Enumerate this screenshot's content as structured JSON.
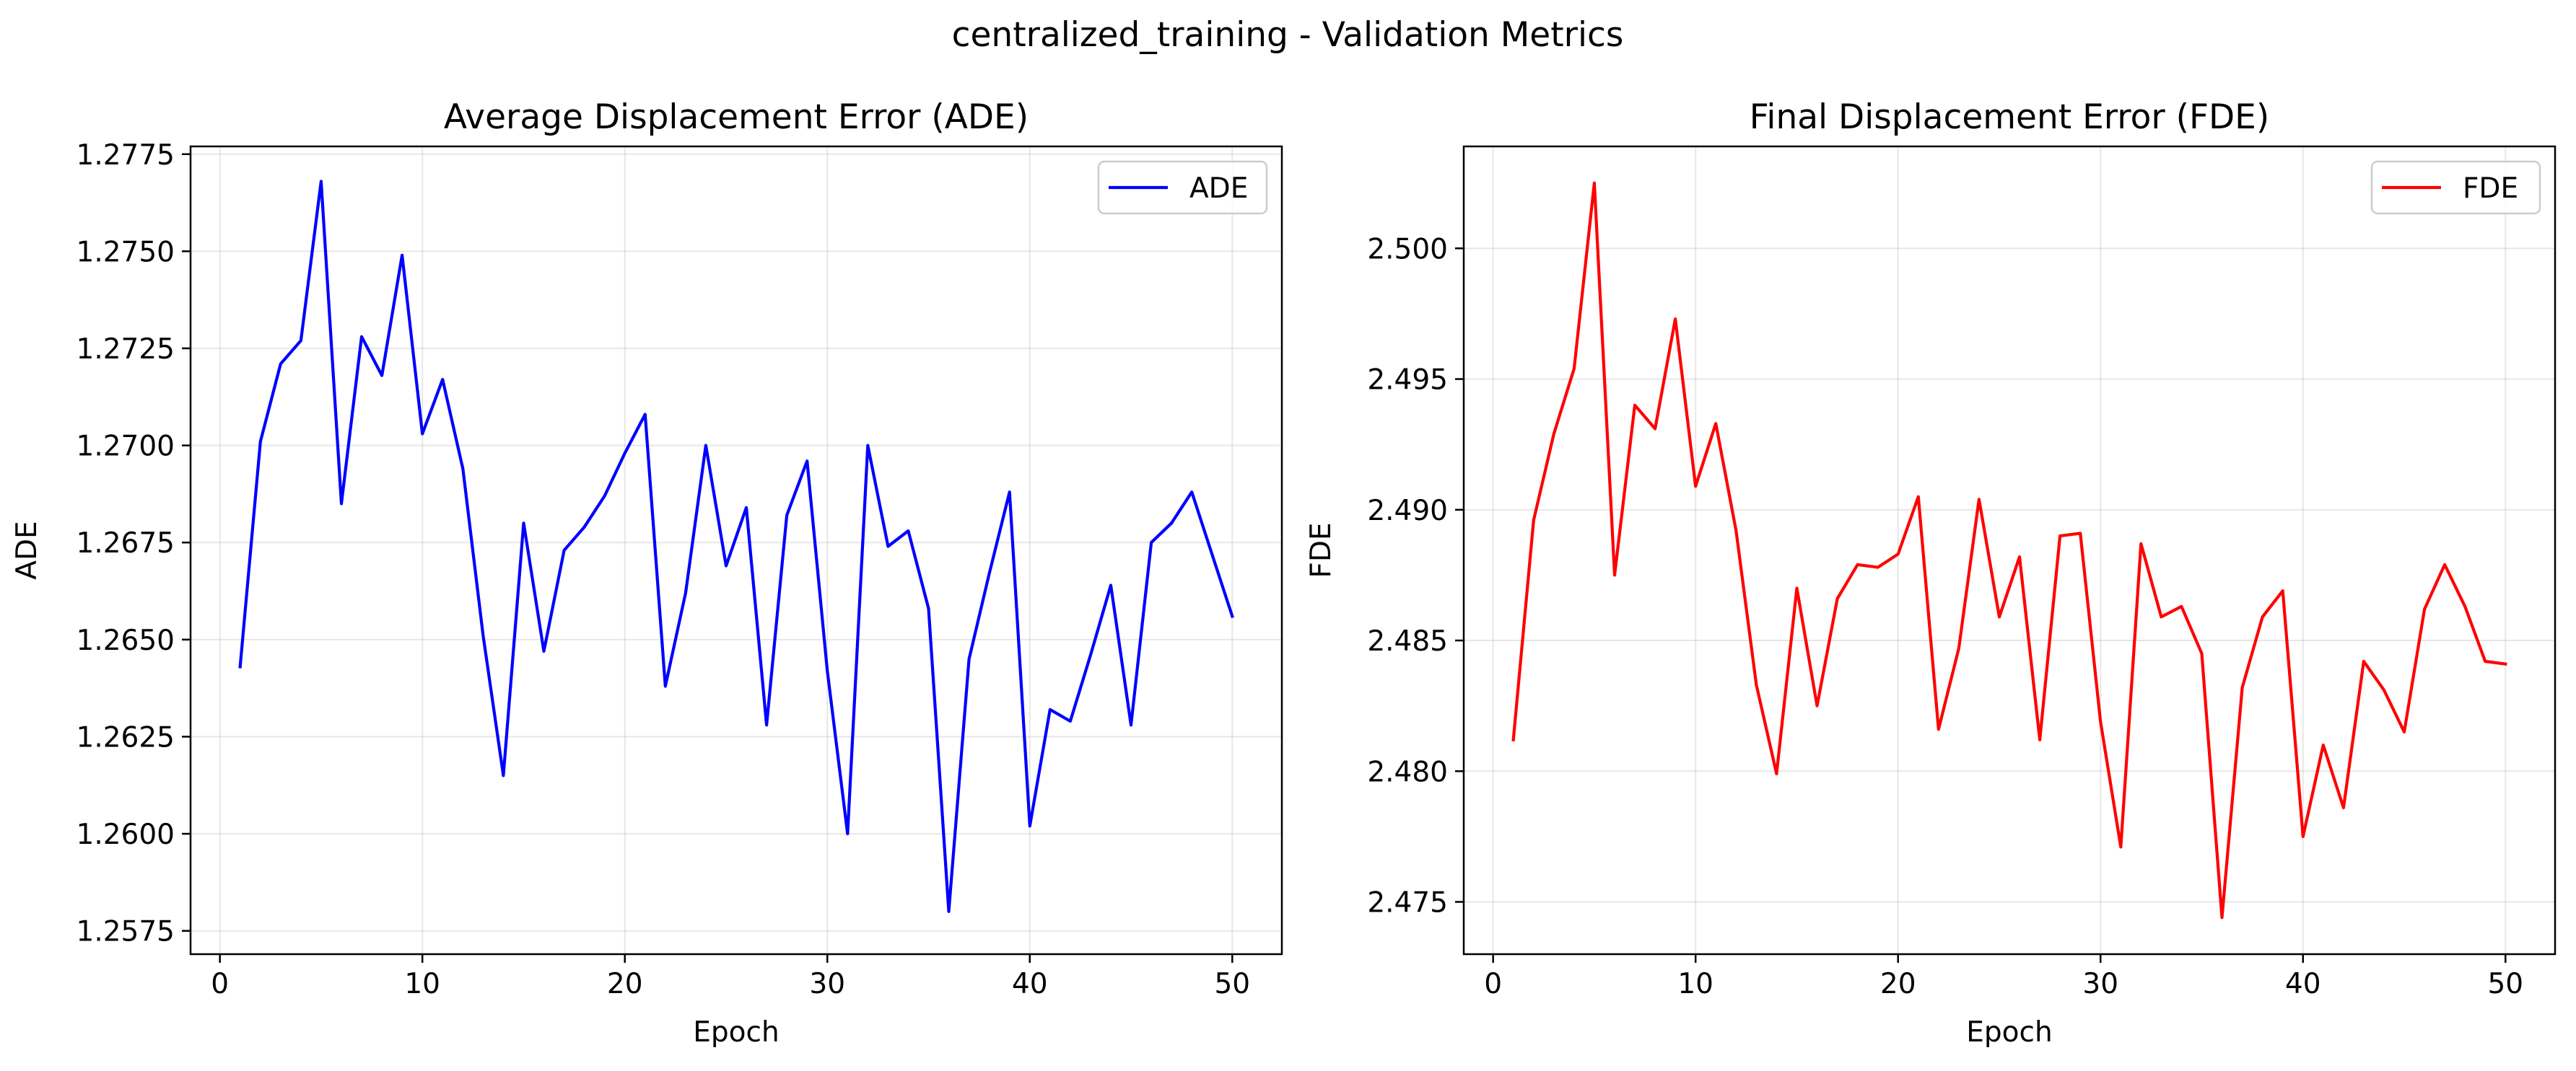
{
  "figure": {
    "suptitle": "centralized_training - Validation Metrics"
  },
  "chart_data": [
    {
      "type": "line",
      "title": "Average Displacement Error (ADE)",
      "xlabel": "Epoch",
      "ylabel": "ADE",
      "xlim": [
        -1.45,
        52.45
      ],
      "ylim": [
        1.2569,
        1.2777
      ],
      "xticks": [
        0,
        10,
        20,
        30,
        40,
        50
      ],
      "xtick_labels": [
        "0",
        "10",
        "20",
        "30",
        "40",
        "50"
      ],
      "yticks": [
        1.2575,
        1.26,
        1.2625,
        1.265,
        1.2675,
        1.27,
        1.2725,
        1.275,
        1.2775
      ],
      "ytick_labels": [
        "1.2575",
        "1.2600",
        "1.2625",
        "1.2650",
        "1.2675",
        "1.2700",
        "1.2725",
        "1.2750",
        "1.2775"
      ],
      "grid": true,
      "legend_position": "upper right",
      "series": [
        {
          "name": "ADE",
          "color": "#0000ff",
          "x": [
            1,
            2,
            3,
            4,
            5,
            6,
            7,
            8,
            9,
            10,
            11,
            12,
            13,
            14,
            15,
            16,
            17,
            18,
            19,
            20,
            21,
            22,
            23,
            24,
            25,
            26,
            27,
            28,
            29,
            30,
            31,
            32,
            33,
            34,
            35,
            36,
            37,
            38,
            39,
            40,
            41,
            42,
            43,
            44,
            45,
            46,
            47,
            48,
            49,
            50
          ],
          "y": [
            1.2643,
            1.2701,
            1.2721,
            1.2727,
            1.2768,
            1.2685,
            1.2728,
            1.2718,
            1.2749,
            1.2703,
            1.2717,
            1.2694,
            1.2651,
            1.2615,
            1.268,
            1.2647,
            1.2673,
            1.2679,
            1.2687,
            1.2698,
            1.2708,
            1.2638,
            1.2662,
            1.27,
            1.2669,
            1.2684,
            1.2628,
            1.2682,
            1.2696,
            1.2642,
            1.26,
            1.27,
            1.2674,
            1.2678,
            1.2658,
            1.258,
            1.2645,
            1.2667,
            1.2688,
            1.2602,
            1.2632,
            1.2629,
            1.2646,
            1.2664,
            1.2628,
            1.2675,
            1.268,
            1.2688,
            1.2672,
            1.2656
          ]
        }
      ]
    },
    {
      "type": "line",
      "title": "Final Displacement Error (FDE)",
      "xlabel": "Epoch",
      "ylabel": "FDE",
      "xlim": [
        -1.45,
        52.45
      ],
      "ylim": [
        2.473,
        2.5039
      ],
      "xticks": [
        0,
        10,
        20,
        30,
        40,
        50
      ],
      "xtick_labels": [
        "0",
        "10",
        "20",
        "30",
        "40",
        "50"
      ],
      "yticks": [
        2.475,
        2.48,
        2.485,
        2.49,
        2.495,
        2.5
      ],
      "ytick_labels": [
        "2.475",
        "2.480",
        "2.485",
        "2.490",
        "2.495",
        "2.500"
      ],
      "grid": true,
      "legend_position": "upper right",
      "series": [
        {
          "name": "FDE",
          "color": "#ff0000",
          "x": [
            1,
            2,
            3,
            4,
            5,
            6,
            7,
            8,
            9,
            10,
            11,
            12,
            13,
            14,
            15,
            16,
            17,
            18,
            19,
            20,
            21,
            22,
            23,
            24,
            25,
            26,
            27,
            28,
            29,
            30,
            31,
            32,
            33,
            34,
            35,
            36,
            37,
            38,
            39,
            40,
            41,
            42,
            43,
            44,
            45,
            46,
            47,
            48,
            49,
            50
          ],
          "y": [
            2.4812,
            2.4896,
            2.4929,
            2.4954,
            2.5025,
            2.4875,
            2.494,
            2.4931,
            2.4973,
            2.4909,
            2.4933,
            2.4892,
            2.4833,
            2.4799,
            2.487,
            2.4825,
            2.4866,
            2.4879,
            2.4878,
            2.4883,
            2.4905,
            2.4816,
            2.4847,
            2.4904,
            2.4859,
            2.4882,
            2.4812,
            2.489,
            2.4891,
            2.4819,
            2.4771,
            2.4887,
            2.4859,
            2.4863,
            2.4845,
            2.4744,
            2.4832,
            2.4859,
            2.4869,
            2.4775,
            2.481,
            2.4786,
            2.4842,
            2.4831,
            2.4815,
            2.4862,
            2.4879,
            2.4863,
            2.4842,
            2.4841
          ]
        }
      ]
    }
  ]
}
